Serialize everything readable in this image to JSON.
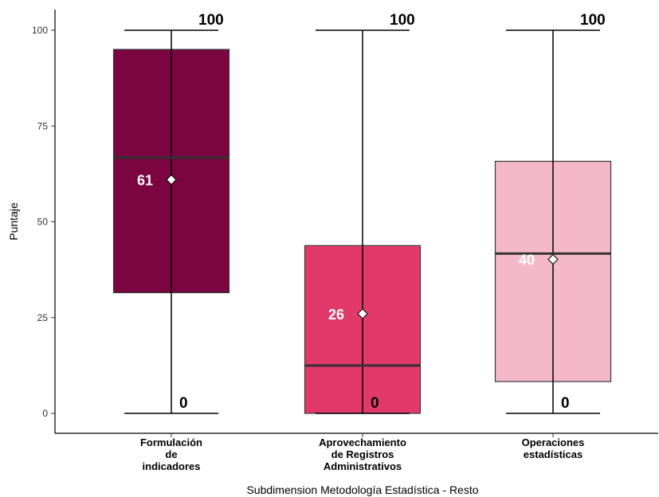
{
  "chart_data": {
    "type": "boxplot",
    "xlabel": "Subdimension Metodología Estadística - Resto",
    "ylabel": "Puntaje",
    "ylim": [
      0,
      100
    ],
    "yticks": [
      0,
      25,
      50,
      75,
      100
    ],
    "legend": "none",
    "grid": false,
    "categories": [
      {
        "label": [
          "Formulación",
          "de",
          "indicadores"
        ],
        "min": 0,
        "q1": 31.5,
        "median": 66.8,
        "q3": 95.0,
        "max": 100,
        "mean": 61,
        "mean_label": "61",
        "max_label": "100",
        "min_label": "0",
        "color": "#7a0540"
      },
      {
        "label": [
          "Aprovechamiento",
          "de Registros",
          "Administrativos"
        ],
        "min": 0,
        "q1": 0,
        "median": 12.5,
        "q3": 43.8,
        "max": 100,
        "mean": 26,
        "mean_label": "26",
        "max_label": "100",
        "min_label": "0",
        "color": "#e0396a"
      },
      {
        "label": [
          "Operaciones",
          "estadísticas"
        ],
        "min": 0,
        "q1": 8.3,
        "median": 41.7,
        "q3": 65.8,
        "max": 100,
        "mean": 40.2,
        "mean_label": "40",
        "max_label": "100",
        "min_label": "0",
        "color": "#f4b8c9"
      }
    ]
  }
}
